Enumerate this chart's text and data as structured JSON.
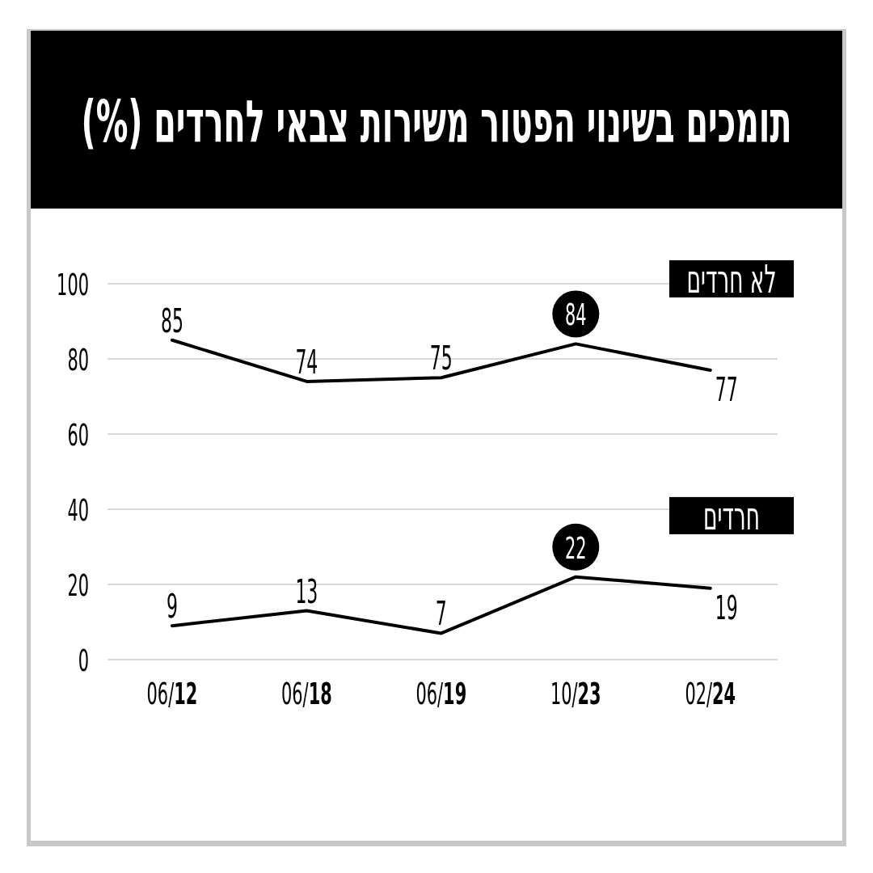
{
  "chart_data": {
    "type": "line",
    "title": "תומכים בשינוי הפטור משירות צבאי לחרדים (%)",
    "categories": [
      "06/**12**",
      "06/**18**",
      "06/**19**",
      "10/**23**",
      "02/**24**"
    ],
    "series": [
      {
        "name": "לא חרדים",
        "color": "#000000",
        "values": [
          85,
          74,
          75,
          84,
          77
        ],
        "value_labels": [
          "85",
          "74",
          "75",
          null,
          "77"
        ]
      },
      {
        "name": "חרדים",
        "color": "#000000",
        "values": [
          9,
          13,
          7,
          22,
          19
        ],
        "value_labels": [
          "9",
          "13",
          "7",
          null,
          "19"
        ]
      }
    ],
    "annotations": [
      {
        "text": "84",
        "x": "10/**23**",
        "y": 84
      },
      {
        "text": "22",
        "x": "10/**23**",
        "y": 22
      }
    ],
    "ylim": [
      0,
      100
    ],
    "yticks": [
      0,
      20,
      40,
      60,
      80,
      100
    ],
    "grid": "y"
  }
}
